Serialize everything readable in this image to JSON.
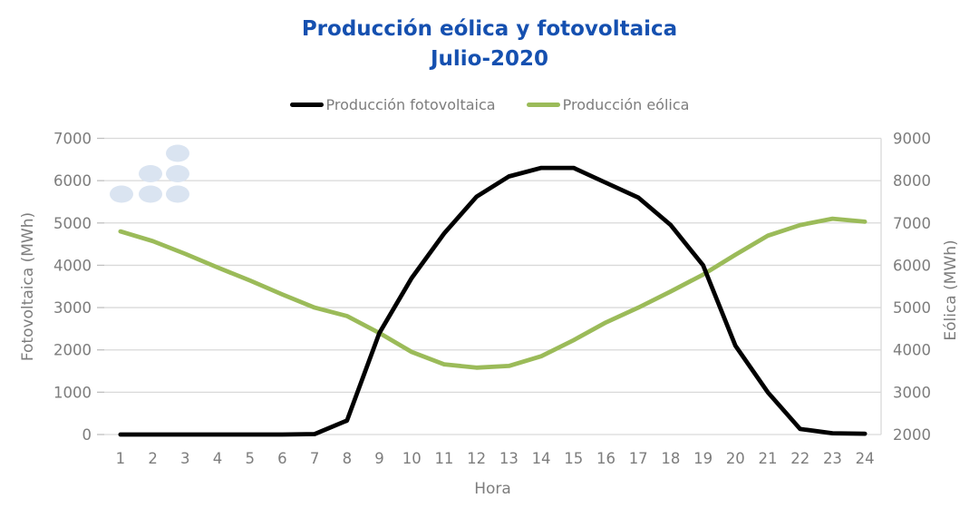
{
  "title": {
    "line1": "Producción eólica y fotovoltaica",
    "line2": "Julio-2020",
    "color": "#1550b0"
  },
  "legend": [
    {
      "label": "Producción fotovoltaica",
      "color": "#000000"
    },
    {
      "label": "Producción eólica",
      "color": "#9bbb59"
    }
  ],
  "chart_data": {
    "type": "line",
    "title": "Producción eólica y fotovoltaica",
    "subtitle": "Julio-2020",
    "x": [
      1,
      2,
      3,
      4,
      5,
      6,
      7,
      8,
      9,
      10,
      11,
      12,
      13,
      14,
      15,
      16,
      17,
      18,
      19,
      20,
      21,
      22,
      23,
      24
    ],
    "xlabel": "Hora",
    "grid": true,
    "legend_position": "top",
    "axes": {
      "left": {
        "label": "Fotovoltaica (MWh)",
        "min": 0,
        "max": 7000,
        "step": 1000
      },
      "right": {
        "label": "Eólica (MWh)",
        "min": 2000,
        "max": 9000,
        "step": 1000
      }
    },
    "series": [
      {
        "name": "Producción fotovoltaica",
        "axis": "left",
        "color": "#000000",
        "values": [
          0,
          0,
          0,
          0,
          0,
          0,
          10,
          330,
          2400,
          3700,
          4750,
          5620,
          6100,
          6300,
          6300,
          5950,
          5600,
          4950,
          4000,
          2100,
          1000,
          130,
          30,
          20
        ]
      },
      {
        "name": "Producción eólica",
        "axis": "right",
        "color": "#9bbb59",
        "values": [
          6800,
          6570,
          6270,
          5950,
          5640,
          5310,
          5000,
          4800,
          4400,
          3950,
          3660,
          3580,
          3620,
          3850,
          4230,
          4650,
          5000,
          5380,
          5780,
          6250,
          6700,
          6950,
          7100,
          7030
        ]
      }
    ]
  },
  "style": {
    "axis_text_color": "#7d7d7d",
    "grid_color": "#d9d9d9",
    "tick_color": "#bfbfbf",
    "dots_color": "#dae4f1"
  }
}
